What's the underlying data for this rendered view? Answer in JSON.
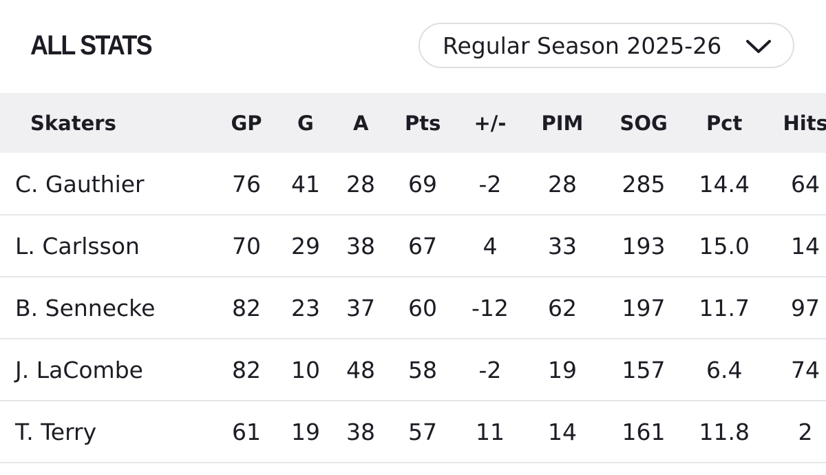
{
  "header": {
    "title": "ALL STATS",
    "season_select": "Regular Season 2025-26"
  },
  "table": {
    "columns": [
      "Skaters",
      "GP",
      "G",
      "A",
      "Pts",
      "+/-",
      "PIM",
      "SOG",
      "Pct",
      "Hits"
    ],
    "rows": [
      [
        "C. Gauthier",
        "76",
        "41",
        "28",
        "69",
        "-2",
        "28",
        "285",
        "14.4",
        "64"
      ],
      [
        "L. Carlsson",
        "70",
        "29",
        "38",
        "67",
        "4",
        "33",
        "193",
        "15.0",
        "14"
      ],
      [
        "B. Sennecke",
        "82",
        "23",
        "37",
        "60",
        "-12",
        "62",
        "197",
        "11.7",
        "97"
      ],
      [
        "J. LaCombe",
        "82",
        "10",
        "48",
        "58",
        "-2",
        "19",
        "157",
        "6.4",
        "74"
      ],
      [
        "T. Terry",
        "61",
        "19",
        "38",
        "57",
        "11",
        "14",
        "161",
        "11.8",
        "2"
      ]
    ]
  }
}
